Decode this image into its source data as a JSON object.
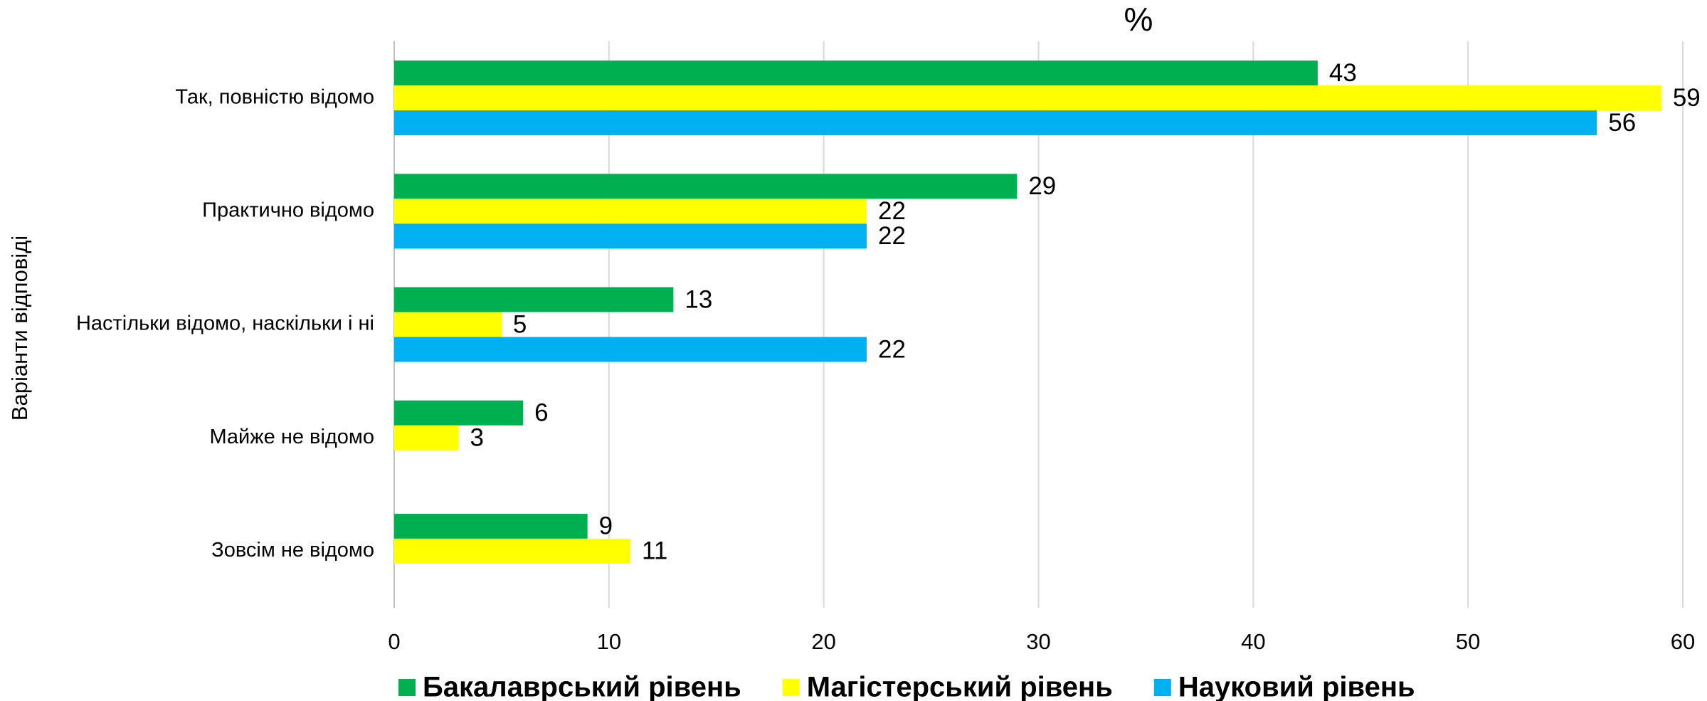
{
  "chart_data": {
    "type": "hbar",
    "title": "%",
    "ylabel": "Варіанти відповіді",
    "categories": [
      "Так, повністю відомо",
      "Практично відомо",
      "Настільки відомо, наскільки і ні",
      "Майже не відомо",
      "Зовсім не відомо"
    ],
    "series": [
      {
        "name": "Бакалаврський рівень",
        "color": "#00b050",
        "values": [
          43,
          29,
          13,
          6,
          9
        ]
      },
      {
        "name": "Магістерський рівень",
        "color": "#ffff00",
        "values": [
          59,
          22,
          5,
          3,
          11
        ]
      },
      {
        "name": "Науковий рівень",
        "color": "#00b0f0",
        "values": [
          56,
          22,
          22,
          null,
          null
        ]
      }
    ],
    "xlim": [
      0,
      60
    ],
    "xticks": [
      0,
      10,
      20,
      30,
      40,
      50,
      60
    ],
    "grid": true,
    "legend": "bottom"
  }
}
